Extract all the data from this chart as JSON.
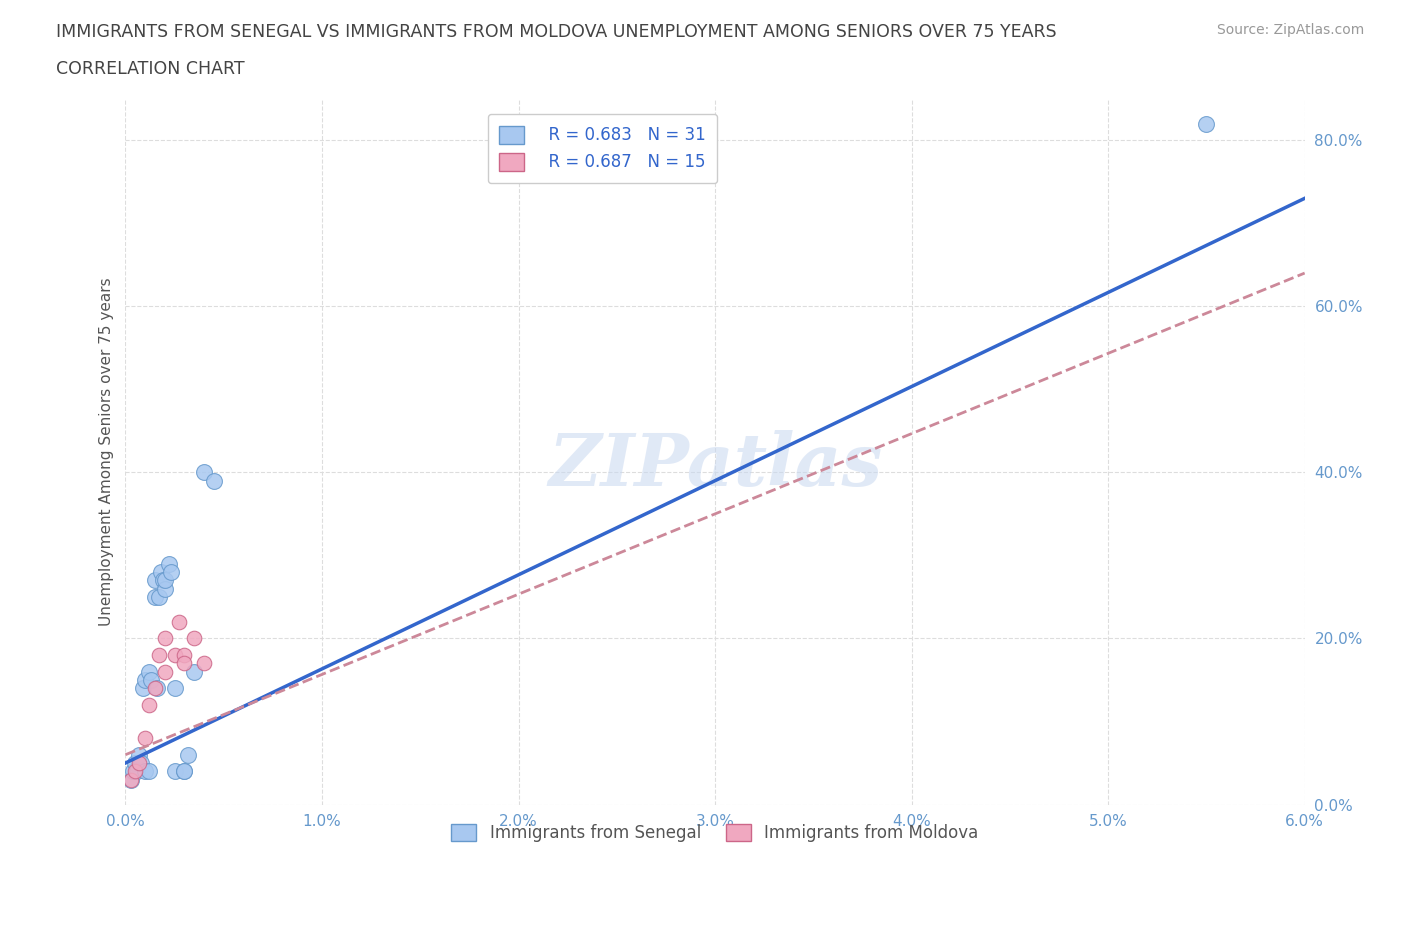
{
  "title_line1": "IMMIGRANTS FROM SENEGAL VS IMMIGRANTS FROM MOLDOVA UNEMPLOYMENT AMONG SENIORS OVER 75 YEARS",
  "title_line2": "CORRELATION CHART",
  "source": "Source: ZipAtlas.com",
  "ylabel": "Unemployment Among Seniors over 75 years",
  "xlim": [
    0.0,
    0.06
  ],
  "ylim": [
    0.0,
    0.85
  ],
  "xticks": [
    0.0,
    0.01,
    0.02,
    0.03,
    0.04,
    0.05,
    0.06
  ],
  "xticklabels": [
    "0.0%",
    "1.0%",
    "2.0%",
    "3.0%",
    "4.0%",
    "5.0%",
    "6.0%"
  ],
  "yticks": [
    0.0,
    0.2,
    0.4,
    0.6,
    0.8
  ],
  "yticklabels": [
    "0.0%",
    "20.0%",
    "40.0%",
    "60.0%",
    "80.0%"
  ],
  "senegal_color": "#a8c8f0",
  "moldova_color": "#f0a8c0",
  "senegal_edge": "#6699cc",
  "moldova_edge": "#cc6688",
  "trend_senegal_color": "#3366cc",
  "trend_moldova_color": "#cc8899",
  "watermark": "ZIPatlas",
  "watermark_color": "#c8d8f0",
  "legend_r_senegal": "R = 0.683",
  "legend_n_senegal": "N = 31",
  "legend_r_moldova": "R = 0.687",
  "legend_n_moldova": "N = 15",
  "senegal_x": [
    0.0003,
    0.0004,
    0.0005,
    0.0006,
    0.0007,
    0.0008,
    0.0009,
    0.001,
    0.001,
    0.0012,
    0.0012,
    0.0013,
    0.0015,
    0.0015,
    0.0016,
    0.0017,
    0.0018,
    0.0019,
    0.002,
    0.002,
    0.0022,
    0.0023,
    0.0025,
    0.0025,
    0.003,
    0.003,
    0.0032,
    0.0035,
    0.004,
    0.0045,
    0.055
  ],
  "senegal_y": [
    0.03,
    0.04,
    0.05,
    0.04,
    0.06,
    0.05,
    0.14,
    0.15,
    0.04,
    0.16,
    0.04,
    0.15,
    0.25,
    0.27,
    0.14,
    0.25,
    0.28,
    0.27,
    0.26,
    0.27,
    0.29,
    0.28,
    0.14,
    0.04,
    0.04,
    0.04,
    0.06,
    0.16,
    0.4,
    0.39,
    0.82
  ],
  "moldova_x": [
    0.0003,
    0.0005,
    0.0007,
    0.001,
    0.0012,
    0.0015,
    0.0017,
    0.002,
    0.002,
    0.0025,
    0.0027,
    0.003,
    0.003,
    0.0035,
    0.004
  ],
  "moldova_y": [
    0.03,
    0.04,
    0.05,
    0.08,
    0.12,
    0.14,
    0.18,
    0.16,
    0.2,
    0.18,
    0.22,
    0.18,
    0.17,
    0.2,
    0.17
  ],
  "senegal_trend_x": [
    0.0,
    0.06
  ],
  "senegal_trend_y": [
    0.05,
    0.73
  ],
  "moldova_trend_x": [
    0.0,
    0.06
  ],
  "moldova_trend_y": [
    0.06,
    0.64
  ]
}
